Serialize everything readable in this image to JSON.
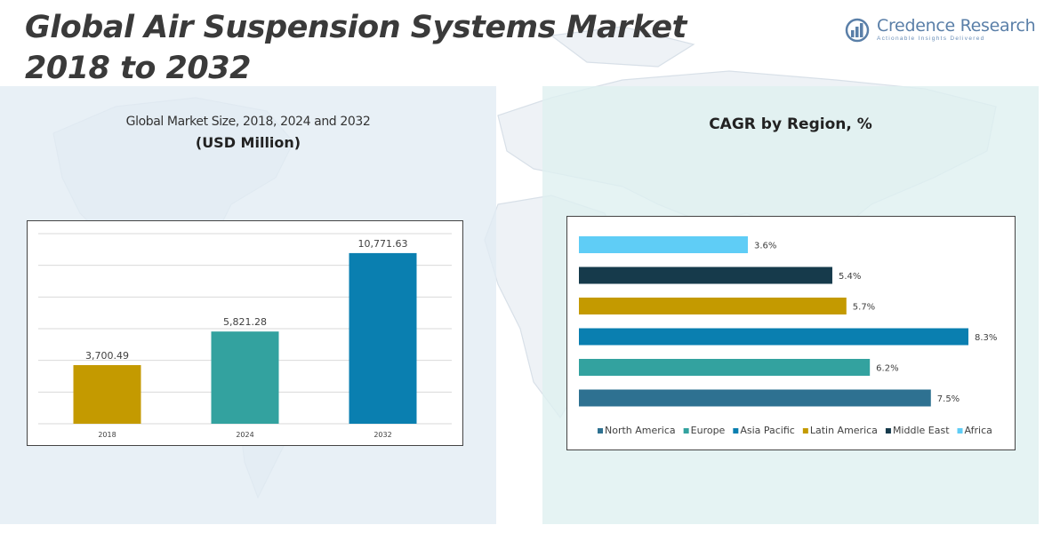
{
  "header": {
    "title_line1": "Global Air Suspension Systems Market",
    "title_line2": "2018 to 2032"
  },
  "logo": {
    "name": "Credence Research",
    "tagline": "Actionable Insights Delivered"
  },
  "left_panel": {
    "subtitle": "Global Market Size, 2018, 2024 and 2032",
    "unit": "(USD Million)"
  },
  "right_panel": {
    "title": "CAGR by Region, %"
  },
  "chart_data": [
    {
      "type": "bar",
      "title": "Global Market Size, 2018, 2024 and 2032",
      "ylabel": "(USD Million)",
      "categories": [
        "2018",
        "2024",
        "2032"
      ],
      "values": [
        3700.49,
        5821.28,
        10771.63
      ],
      "value_labels": [
        "3,700.49",
        "5,821.28",
        "10,771.63"
      ],
      "colors": [
        "#c49a00",
        "#33a29f",
        "#0a7fb0"
      ],
      "ylim": [
        0,
        12000
      ],
      "grid": true
    },
    {
      "type": "bar",
      "orientation": "horizontal",
      "title": "CAGR by Region, %",
      "categories": [
        "North America",
        "Europe",
        "Asia Pacific",
        "Latin America",
        "Middle East",
        "Africa"
      ],
      "values": [
        7.5,
        6.2,
        8.3,
        5.7,
        5.4,
        3.6
      ],
      "value_labels": [
        "7.5%",
        "6.2%",
        "8.3%",
        "5.7%",
        "5.4%",
        "3.6%"
      ],
      "colors": [
        "#2e7191",
        "#33a29f",
        "#0a7fb0",
        "#c49a00",
        "#163a4b",
        "#5fcdf6"
      ],
      "legend": "bottom",
      "grid": false
    }
  ]
}
